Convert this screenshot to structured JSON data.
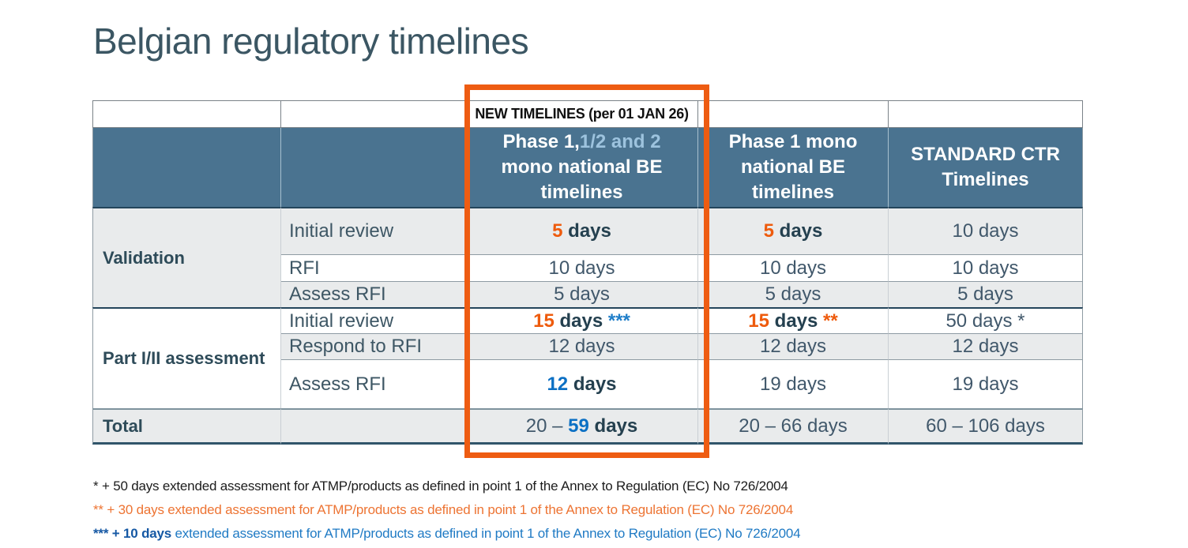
{
  "title": "Belgian regulatory timelines",
  "banner": {
    "new_timelines": "NEW TIMELINES (per 01 JAN 26)"
  },
  "header": {
    "phase12_a": "Phase 1,",
    "phase12_b": "1/2 and 2",
    "phase12_c": " mono national BE timelines",
    "phase1_mono": "Phase 1 mono national BE timelines",
    "standard_ctr": "STANDARD CTR Timelines"
  },
  "groups": {
    "validation": "Validation",
    "part_i_ii": "Part I/II assessment",
    "total": "Total"
  },
  "rows": {
    "v1": {
      "label": "Initial review",
      "new12": {
        "num": "5",
        "rest": " days"
      },
      "mono": {
        "num": "5",
        "rest": " days"
      },
      "ctr": "10 days"
    },
    "v2": {
      "label": "RFI",
      "new12": "10 days",
      "mono": "10 days",
      "ctr": "10 days"
    },
    "v3": {
      "label": "Assess RFI",
      "new12": "5 days",
      "mono": "5 days",
      "ctr": "5 days"
    },
    "p1": {
      "label": "Initial review",
      "new12": {
        "num": "15",
        "rest": " days ",
        "mark": "***"
      },
      "mono": {
        "num": "15",
        "rest": " days ",
        "mark": "**"
      },
      "ctr": "50 days *"
    },
    "p2": {
      "label": "Respond to RFI",
      "new12": "12 days",
      "mono": "12 days",
      "ctr": "12 days"
    },
    "p3": {
      "label": "Assess RFI",
      "new12": {
        "num": "12",
        "rest": " days"
      },
      "mono": "19 days",
      "ctr": "19 days"
    },
    "total": {
      "new12": {
        "pre": "20 – ",
        "num": "59",
        "rest": " days"
      },
      "mono": "20 – 66 days",
      "ctr": "60 – 106 days"
    }
  },
  "footnotes": {
    "fn1": "* + 50 days extended assessment for ATMP/products as defined in point 1 of the Annex to Regulation (EC) No 726/2004",
    "fn2": "** + 30 days extended assessment for ATMP/products as defined in point 1 of the Annex to Regulation (EC) No 726/2004",
    "fn3_marker": "*** ",
    "fn3_bold": "+ 10 days",
    "fn3_rest": " extended assessment for ATMP/products as defined in point 1 of the Annex to Regulation (EC) No 726/2004"
  },
  "colors": {
    "header_bg": "#4A7390",
    "row_alt_bg": "#E9EBEC",
    "accent_orange": "#EE5B0D",
    "accent_blue": "#0C70C4",
    "header_light_blue": "#9DC3DE",
    "highlight_border": "#EE5C12",
    "footnote_orange": "#ED7433",
    "footnote_blue": "#1F7AC4"
  }
}
